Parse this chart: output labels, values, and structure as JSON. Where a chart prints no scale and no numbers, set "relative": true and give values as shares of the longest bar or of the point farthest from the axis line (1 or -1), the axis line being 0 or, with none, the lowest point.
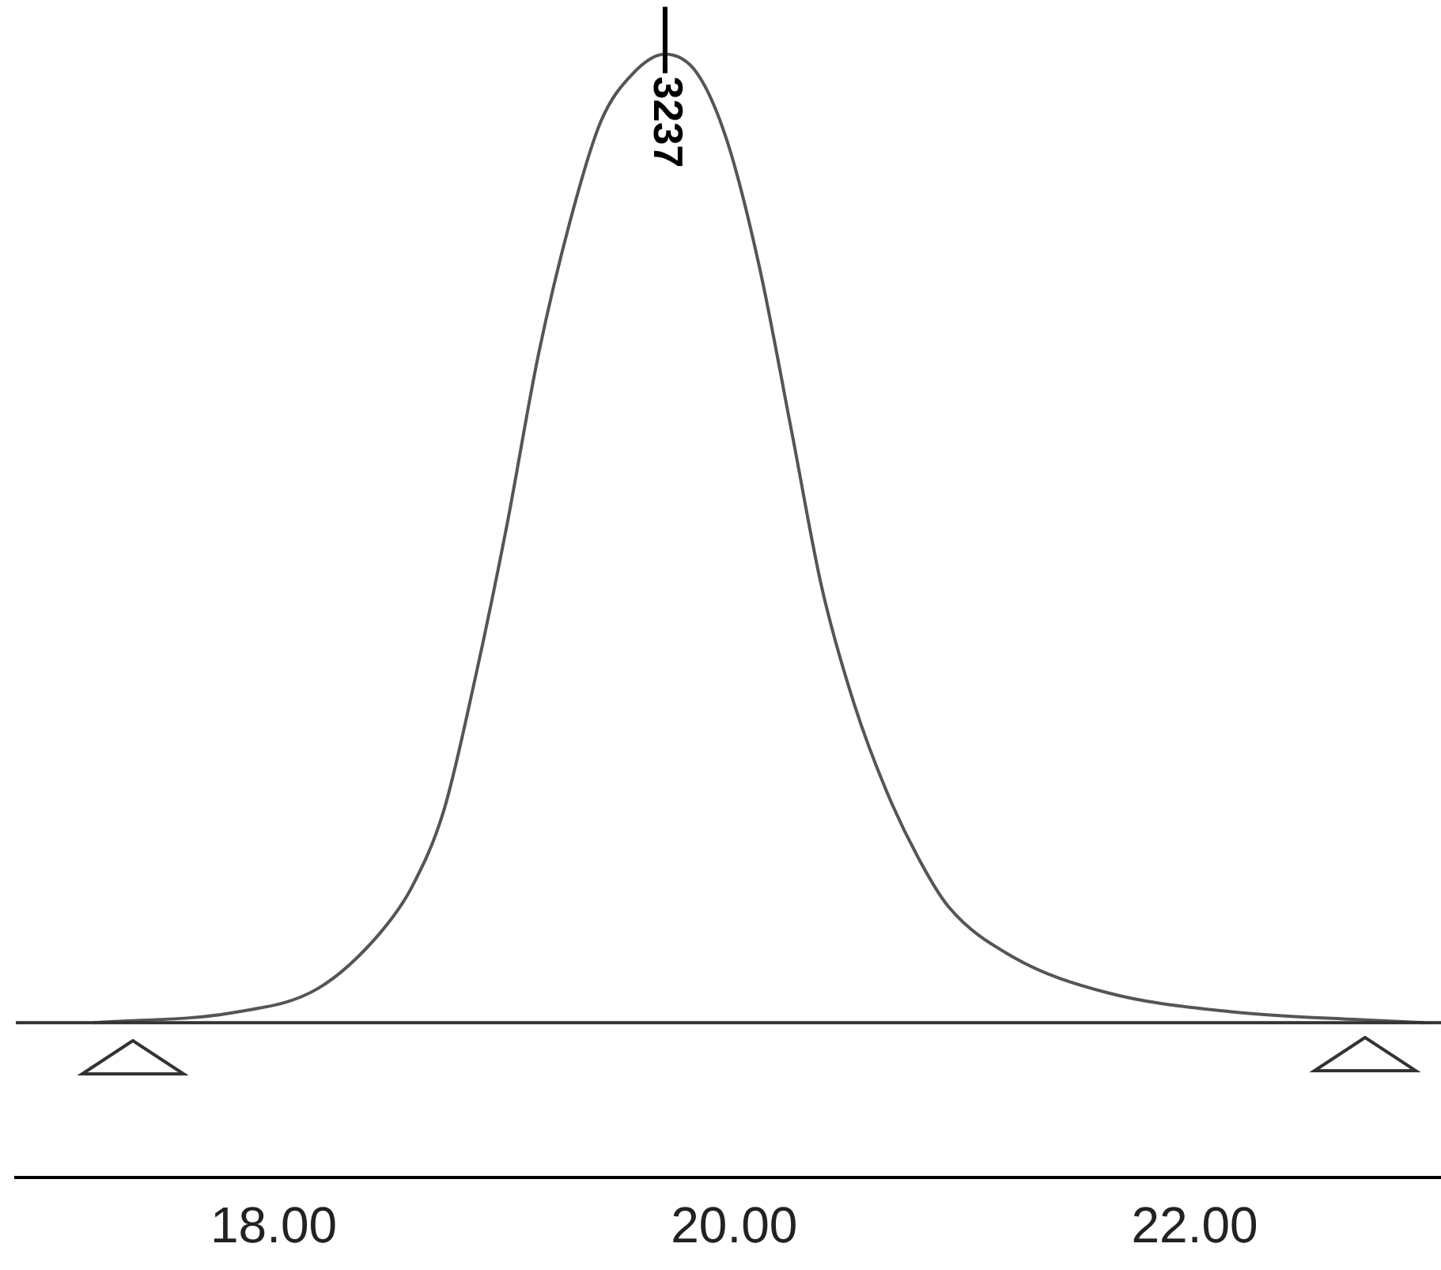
{
  "chart_data": {
    "type": "line",
    "relative": true,
    "marker": "none",
    "legend": false,
    "grid": false,
    "xlim": [
      16.88,
      23.07
    ],
    "xticks": [
      {
        "value": 18,
        "label": "18.00"
      },
      {
        "value": 20,
        "label": "20.00"
      },
      {
        "value": 22,
        "label": "22.00"
      }
    ],
    "series": [
      {
        "color": "#555555",
        "x": [
          17.22,
          17.84,
          18.19,
          18.46,
          18.6,
          18.74,
          18.87,
          19.01,
          19.15,
          19.29,
          19.42,
          19.56,
          19.7,
          19.84,
          19.97,
          20.11,
          20.25,
          20.38,
          20.52,
          20.66,
          20.8,
          20.93,
          21.21,
          21.62,
          22.17,
          22.72,
          23.0
        ],
        "values": [
          0,
          0.011,
          0.035,
          0.092,
          0.14,
          0.22,
          0.35,
          0.51,
          0.69,
          0.83,
          0.93,
          0.98,
          1,
          0.98,
          0.91,
          0.78,
          0.61,
          0.45,
          0.33,
          0.24,
          0.17,
          0.12,
          0.068,
          0.031,
          0.011,
          0.003,
          0
        ]
      }
    ],
    "annotations": [
      {
        "text": "3237",
        "x": 19.7,
        "y": 1
      }
    ]
  }
}
